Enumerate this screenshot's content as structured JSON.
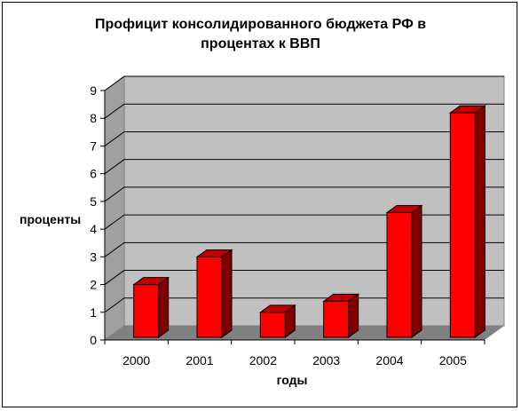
{
  "chart_data": {
    "type": "bar",
    "title_line1": "Профицит   консолидированного бюджета  РФ в",
    "title_line2": "процентах к ВВП",
    "xlabel": "годы",
    "ylabel": "проценты",
    "categories": [
      "2000",
      "2001",
      "2002",
      "2003",
      "2004",
      "2005"
    ],
    "values": [
      1.9,
      2.9,
      0.9,
      1.3,
      4.5,
      8.1
    ],
    "ylim": [
      0,
      9
    ],
    "yticks": [
      0,
      1,
      2,
      3,
      4,
      5,
      6,
      7,
      8,
      9
    ],
    "grid": true,
    "colors": {
      "bar_front": "#ff0000",
      "bar_side": "#800000",
      "bar_top": "#c00000",
      "back_wall": "#c0c0c0",
      "side_wall": "#a0a0a0",
      "floor": "#808080"
    }
  }
}
